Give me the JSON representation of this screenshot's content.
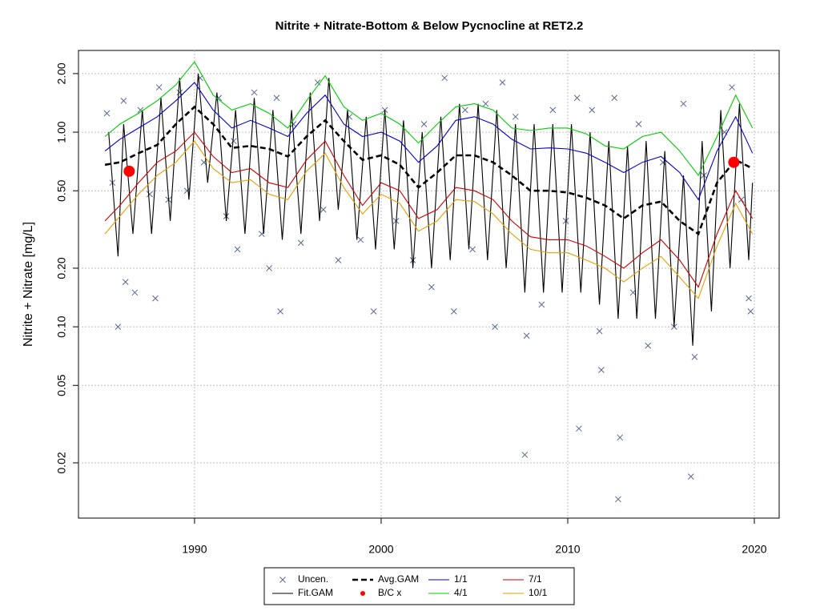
{
  "chart_data": {
    "type": "line",
    "title": "Nitrite + Nitrate-Bottom & Below Pycnocline at RET2.2",
    "y_label": "Nitrite + Nitrate [mg/L]",
    "log_y": true,
    "grid": true,
    "legend": "bottom",
    "xlim": [
      1983.78,
      2021.33
    ],
    "xticks": [
      1990,
      2000,
      2010,
      2020
    ],
    "ylim": [
      0.0104,
      2.63
    ],
    "yticks": [
      0.02,
      0.05,
      {
        "value": 0.1,
        "label": "0.10"
      },
      {
        "value": 0.2,
        "label": "0.20"
      },
      {
        "value": 0.5,
        "label": "0.50"
      },
      {
        "value": 1,
        "label": "1.00"
      },
      {
        "value": 2,
        "label": "2.00"
      }
    ],
    "series": [
      {
        "name": "Uncen.",
        "color": "#5a6890",
        "mark": "x",
        "x": [
          1985.3,
          1985.6,
          1985.9,
          1986.2,
          1986.3,
          1986.8,
          1987.1,
          1987.6,
          1988.1,
          1987.9,
          1988.6,
          1989.2,
          1989.6,
          1990.3,
          1990.5,
          1991.3,
          1991.7,
          1992.1,
          1992.3,
          1993.2,
          1993.6,
          1994.0,
          1994.4,
          1994.6,
          1995.3,
          1995.7,
          1996.6,
          1996.9,
          1997.7,
          1998.3,
          1998.9,
          1999.6,
          2000.2,
          2000.8,
          2001.7,
          2002.3,
          2002.7,
          2003.4,
          2003.9,
          2004.5,
          2004.9,
          2005.6,
          2006.1,
          2006.5,
          2007.2,
          2007.7,
          2007.8,
          2008.6,
          2009.2,
          2009.9,
          2010.5,
          2010.6,
          2011.3,
          2011.7,
          2011.8,
          2012.5,
          2012.7,
          2012.8,
          2013.5,
          2013.8,
          2014.3,
          2015.1,
          2015.7,
          2016.2,
          2016.6,
          2016.8,
          2017.3,
          2018.4,
          2018.8,
          2019.3,
          2019.7,
          2019.8
        ],
        "values": [
          1.25,
          0.55,
          0.1,
          1.45,
          0.17,
          0.15,
          1.3,
          0.48,
          1.7,
          0.14,
          0.45,
          1.6,
          0.5,
          1.9,
          0.7,
          1.5,
          0.37,
          0.9,
          0.25,
          1.6,
          0.3,
          0.2,
          1.5,
          0.12,
          1.1,
          0.27,
          1.8,
          0.4,
          0.22,
          1.2,
          0.28,
          0.12,
          1.3,
          0.35,
          0.22,
          1.1,
          0.16,
          1.9,
          0.12,
          1.3,
          0.25,
          1.4,
          0.1,
          1.8,
          1.2,
          0.022,
          0.09,
          0.13,
          1.3,
          0.35,
          1.5,
          0.03,
          1.3,
          0.095,
          0.06,
          1.5,
          0.013,
          0.027,
          0.15,
          1.1,
          0.08,
          0.7,
          0.1,
          1.4,
          0.017,
          0.07,
          0.6,
          1.0,
          1.7,
          0.45,
          0.14,
          0.12
        ]
      },
      {
        "name": "Fit.GAM",
        "color": "#000000",
        "mark": "line",
        "x": [
          1985.4,
          1985.9,
          1986.2,
          1986.7,
          1987.2,
          1987.7,
          1988.2,
          1988.7,
          1989.2,
          1989.7,
          1990.2,
          1990.7,
          1991.2,
          1991.7,
          1992.2,
          1992.7,
          1993.2,
          1993.7,
          1994.2,
          1994.7,
          1995.2,
          1995.7,
          1996.2,
          1996.7,
          1997.2,
          1997.7,
          1998.2,
          1998.7,
          1999.2,
          1999.7,
          2000.2,
          2000.7,
          2001.2,
          2001.7,
          2002.2,
          2002.7,
          2003.2,
          2003.7,
          2004.2,
          2004.7,
          2005.2,
          2005.7,
          2006.2,
          2006.7,
          2007.2,
          2007.7,
          2008.2,
          2008.7,
          2009.2,
          2009.7,
          2010.2,
          2010.7,
          2011.2,
          2011.7,
          2012.2,
          2012.7,
          2013.2,
          2013.7,
          2014.2,
          2014.7,
          2015.2,
          2015.7,
          2016.2,
          2016.7,
          2017.2,
          2017.7,
          2018.2,
          2018.7,
          2019.2,
          2019.7,
          2019.9
        ],
        "values": [
          1.0,
          0.23,
          1.1,
          0.3,
          1.3,
          0.3,
          1.5,
          0.35,
          1.9,
          0.45,
          2.0,
          0.55,
          1.6,
          0.35,
          1.3,
          0.3,
          1.5,
          0.3,
          1.3,
          0.28,
          1.3,
          0.3,
          1.6,
          0.35,
          1.9,
          0.4,
          1.3,
          0.28,
          1.2,
          0.25,
          1.3,
          0.25,
          1.15,
          0.2,
          1.0,
          0.2,
          1.2,
          0.22,
          1.4,
          0.25,
          1.4,
          0.22,
          1.3,
          0.2,
          1.1,
          0.15,
          1.1,
          0.15,
          1.1,
          0.15,
          1.1,
          0.15,
          1.0,
          0.13,
          0.9,
          0.11,
          0.85,
          0.11,
          0.9,
          0.11,
          0.8,
          0.1,
          0.6,
          0.08,
          0.9,
          0.12,
          1.3,
          0.2,
          1.4,
          0.22,
          0.55
        ]
      },
      {
        "name": "Avg.GAM",
        "color": "#000000",
        "mark": "dashed",
        "x": [
          1985.2,
          1986,
          1987,
          1988,
          1989,
          1990,
          1991,
          1992,
          1993,
          1994,
          1995,
          1996,
          1997,
          1998,
          1999,
          2000,
          2001,
          2002,
          2003,
          2004,
          2005,
          2006,
          2007,
          2008,
          2009,
          2010,
          2011,
          2012,
          2013,
          2014,
          2015,
          2016,
          2017,
          2018,
          2019,
          2019.9
        ],
        "values": [
          0.68,
          0.7,
          0.78,
          0.86,
          1.1,
          1.35,
          1.1,
          0.83,
          0.85,
          0.82,
          0.75,
          0.95,
          1.15,
          0.9,
          0.72,
          0.76,
          0.68,
          0.52,
          0.62,
          0.76,
          0.76,
          0.7,
          0.6,
          0.5,
          0.5,
          0.49,
          0.46,
          0.42,
          0.36,
          0.42,
          0.44,
          0.35,
          0.3,
          0.55,
          0.72,
          0.65
        ]
      },
      {
        "name": "B/C x",
        "color": "#ff0000",
        "mark": "dot",
        "x": [
          1986.5,
          2018.9
        ],
        "values": [
          0.63,
          0.7
        ]
      },
      {
        "name": "1/1",
        "color": "#0000cc",
        "mark": "line",
        "x": [
          1985.2,
          1986,
          1987,
          1988,
          1989,
          1990,
          1991,
          1992,
          1993,
          1994,
          1995,
          1996,
          1997,
          1998,
          1999,
          2000,
          2001,
          2002,
          2003,
          2004,
          2005,
          2006,
          2007,
          2008,
          2009,
          2010,
          2011,
          2012,
          2013,
          2014,
          2015,
          2016,
          2017,
          2018,
          2019,
          2019.9
        ],
        "values": [
          0.8,
          0.92,
          1.05,
          1.2,
          1.45,
          1.8,
          1.3,
          1.05,
          1.15,
          1.05,
          0.95,
          1.25,
          1.55,
          1.1,
          0.95,
          1.0,
          0.9,
          0.7,
          0.85,
          1.15,
          1.2,
          1.1,
          0.92,
          0.82,
          0.83,
          0.82,
          0.78,
          0.7,
          0.62,
          0.7,
          0.75,
          0.62,
          0.45,
          0.8,
          1.2,
          0.78
        ]
      },
      {
        "name": "4/1",
        "color": "#00cc00",
        "mark": "line",
        "x": [
          1985.2,
          1986,
          1987,
          1988,
          1989,
          1990,
          1991,
          1992,
          1993,
          1994,
          1995,
          1996,
          1997,
          1998,
          1999,
          2000,
          2001,
          2002,
          2003,
          2004,
          2005,
          2006,
          2007,
          2008,
          2009,
          2010,
          2011,
          2012,
          2013,
          2014,
          2015,
          2016,
          2017,
          2018,
          2019,
          2019.9
        ],
        "values": [
          0.95,
          1.1,
          1.25,
          1.45,
          1.75,
          2.3,
          1.55,
          1.3,
          1.4,
          1.25,
          1.05,
          1.45,
          1.95,
          1.35,
          1.15,
          1.25,
          1.1,
          0.88,
          1.1,
          1.35,
          1.4,
          1.3,
          1.05,
          1.02,
          1.05,
          1.05,
          0.98,
          0.85,
          0.82,
          0.95,
          1.0,
          0.8,
          0.6,
          0.95,
          1.55,
          1.05
        ]
      },
      {
        "name": "7/1",
        "color": "#cc0000",
        "mark": "line",
        "x": [
          1985.2,
          1986,
          1987,
          1988,
          1989,
          1990,
          1991,
          1992,
          1993,
          1994,
          1995,
          1996,
          1997,
          1998,
          1999,
          2000,
          2001,
          2002,
          2003,
          2004,
          2005,
          2006,
          2007,
          2008,
          2009,
          2010,
          2011,
          2012,
          2013,
          2014,
          2015,
          2016,
          2017,
          2018,
          2019,
          2019.9
        ],
        "values": [
          0.35,
          0.42,
          0.55,
          0.7,
          0.8,
          1.0,
          0.75,
          0.62,
          0.65,
          0.55,
          0.52,
          0.72,
          0.9,
          0.6,
          0.42,
          0.55,
          0.5,
          0.36,
          0.4,
          0.52,
          0.5,
          0.45,
          0.35,
          0.29,
          0.28,
          0.28,
          0.26,
          0.23,
          0.2,
          0.24,
          0.28,
          0.22,
          0.16,
          0.3,
          0.5,
          0.36
        ]
      },
      {
        "name": "10/1",
        "color": "#e69f00",
        "mark": "line",
        "x": [
          1985.2,
          1986,
          1987,
          1988,
          1989,
          1990,
          1991,
          1992,
          1993,
          1994,
          1995,
          1996,
          1997,
          1998,
          1999,
          2000,
          2001,
          2002,
          2003,
          2004,
          2005,
          2006,
          2007,
          2008,
          2009,
          2010,
          2011,
          2012,
          2013,
          2014,
          2015,
          2016,
          2017,
          2018,
          2019,
          2019.9
        ],
        "values": [
          0.3,
          0.37,
          0.48,
          0.6,
          0.7,
          0.9,
          0.65,
          0.55,
          0.57,
          0.48,
          0.45,
          0.63,
          0.78,
          0.52,
          0.38,
          0.48,
          0.43,
          0.31,
          0.35,
          0.45,
          0.44,
          0.38,
          0.3,
          0.25,
          0.24,
          0.24,
          0.22,
          0.2,
          0.17,
          0.2,
          0.23,
          0.18,
          0.14,
          0.26,
          0.43,
          0.3
        ]
      }
    ]
  }
}
